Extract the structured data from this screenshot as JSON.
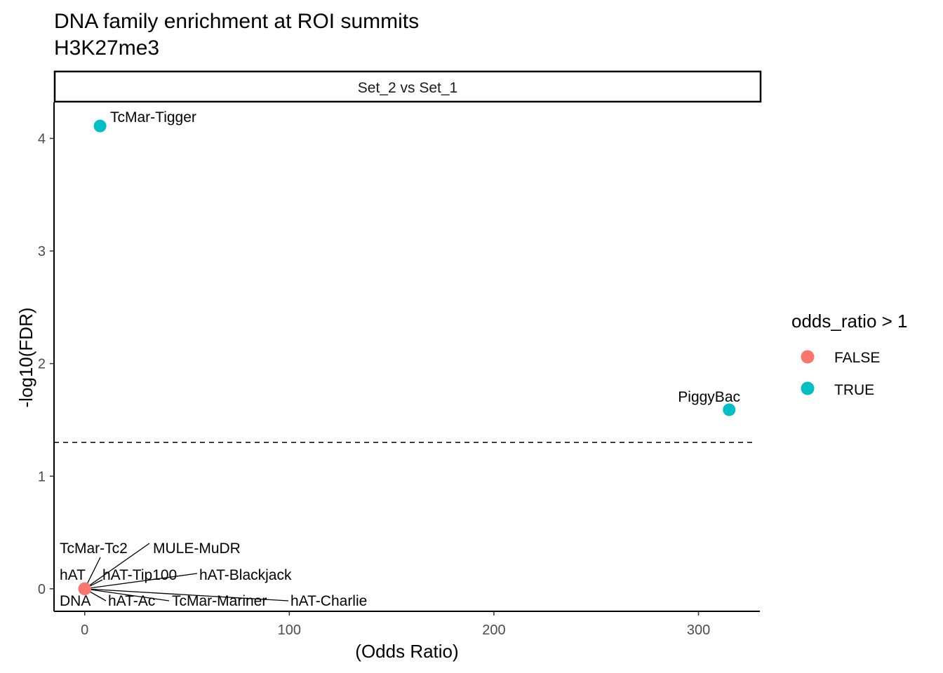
{
  "chart_data": {
    "type": "scatter",
    "title": "DNA family enrichment at ROI summits",
    "subtitle": "H3K27me3",
    "facet_label": "Set_2 vs Set_1",
    "xlabel": "(Odds Ratio)",
    "ylabel": "-log10(FDR)",
    "xlim": [
      -15,
      330
    ],
    "ylim": [
      -0.2,
      4.32
    ],
    "xticks": [
      0,
      100,
      200,
      300
    ],
    "yticks": [
      0,
      1,
      2,
      3,
      4
    ],
    "reference_line": {
      "y": 1.3,
      "style": "dashed"
    },
    "legend": {
      "title": "odds_ratio > 1",
      "position": "right",
      "entries": [
        {
          "label": "FALSE",
          "color": "#F8766D"
        },
        {
          "label": "TRUE",
          "color": "#00BFC4"
        }
      ]
    },
    "points": [
      {
        "label": "TcMar-Tigger",
        "x": 7.5,
        "y": 4.11,
        "group": "TRUE"
      },
      {
        "label": "PiggyBac",
        "x": 315,
        "y": 1.59,
        "group": "TRUE"
      },
      {
        "label": "DNA",
        "x": 0,
        "y": 0,
        "group": "FALSE"
      },
      {
        "label": "hAT",
        "x": 0,
        "y": 0,
        "group": "FALSE"
      },
      {
        "label": "TcMar-Tc2",
        "x": 0,
        "y": 0,
        "group": "FALSE"
      },
      {
        "label": "MULE-MuDR",
        "x": 0,
        "y": 0,
        "group": "FALSE"
      },
      {
        "label": "hAT-Tip100",
        "x": 0,
        "y": 0,
        "group": "FALSE"
      },
      {
        "label": "hAT-Blackjack",
        "x": 0,
        "y": 0,
        "group": "FALSE"
      },
      {
        "label": "hAT-Ac",
        "x": 0,
        "y": 0,
        "group": "FALSE"
      },
      {
        "label": "TcMar-Mariner",
        "x": 0,
        "y": 0,
        "group": "FALSE"
      },
      {
        "label": "hAT-Charlie",
        "x": 0,
        "y": 0,
        "group": "FALSE"
      }
    ],
    "grid": false
  }
}
